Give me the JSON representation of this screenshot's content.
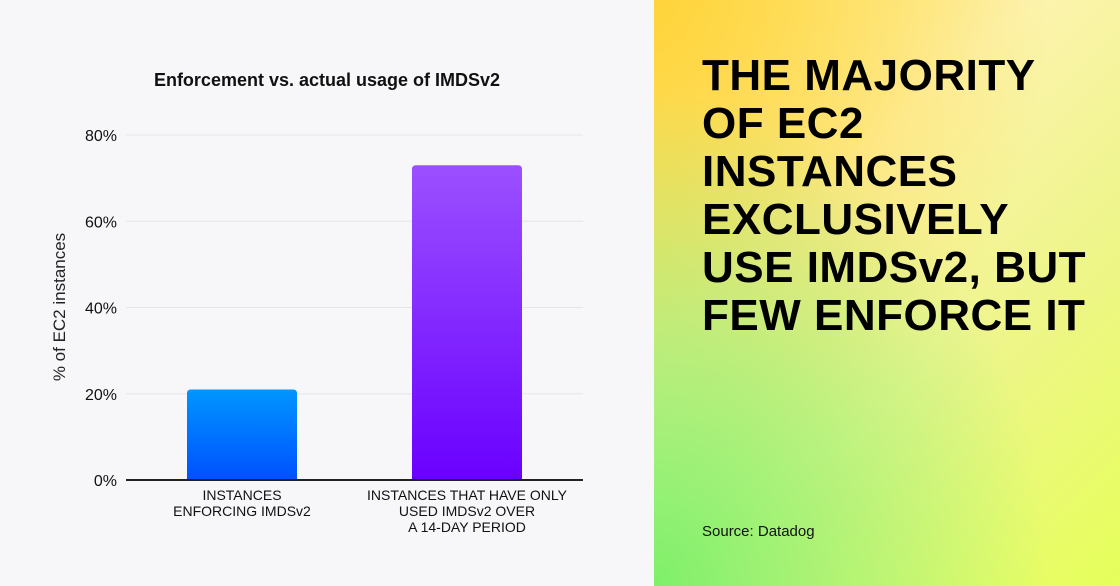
{
  "headline": "THE MAJORITY OF EC2 INSTANCES EXCLUSIVELY USE IMDSv2, BUT FEW ENFORCE IT",
  "source": "Source: Datadog",
  "colors": {
    "bar1_top": "#0096ff",
    "bar1_bottom": "#0050ff",
    "bar2_top": "#9b50ff",
    "bar2_bottom": "#6a00ff",
    "left_bg": "#f7f7f9"
  },
  "chart_data": {
    "type": "bar",
    "title": "Enforcement vs. actual usage of IMDSv2",
    "ylabel": "% of EC2 instances",
    "xlabel": "",
    "ylim": [
      0,
      80
    ],
    "yticks": [
      "0%",
      "20%",
      "40%",
      "60%",
      "80%"
    ],
    "grid": true,
    "categories": [
      [
        "INSTANCES",
        "ENFORCING IMDSv2"
      ],
      [
        "INSTANCES THAT HAVE ONLY",
        "USED IMDSv2 OVER",
        "A 14-DAY PERIOD"
      ]
    ],
    "values": [
      21,
      73
    ]
  }
}
